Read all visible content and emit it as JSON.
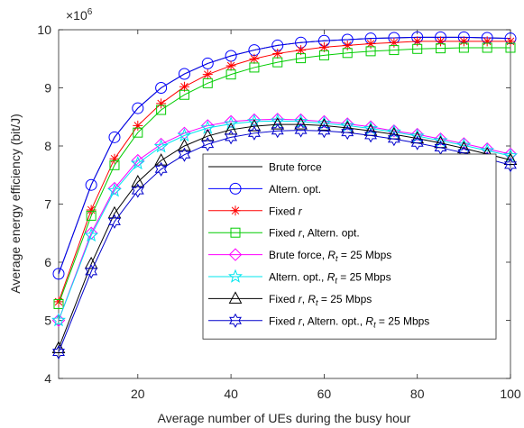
{
  "chart_data": {
    "type": "line",
    "xlabel": "Average number of UEs during the busy hour",
    "ylabel": "Average energy efficiency (bit/J)",
    "y_multiplier": "×10",
    "y_exponent": "6",
    "xlim": [
      3,
      100
    ],
    "ylim": [
      4,
      10
    ],
    "x_ticks": [
      20,
      40,
      60,
      80,
      100
    ],
    "y_ticks": [
      4,
      5,
      6,
      7,
      8,
      9,
      10
    ],
    "grid": false,
    "legend_position": "bottom-right",
    "x": [
      3,
      10,
      15,
      20,
      25,
      30,
      35,
      40,
      45,
      50,
      55,
      60,
      65,
      70,
      75,
      80,
      85,
      90,
      95,
      100
    ],
    "series": [
      {
        "legend": [
          "Brute force"
        ],
        "color": "#000000",
        "marker": "none",
        "values": [
          5.8,
          7.33,
          8.15,
          8.65,
          9.0,
          9.24,
          9.42,
          9.55,
          9.65,
          9.73,
          9.78,
          9.81,
          9.83,
          9.85,
          9.86,
          9.87,
          9.87,
          9.87,
          9.86,
          9.85
        ]
      },
      {
        "legend": [
          "Altern. opt."
        ],
        "color": "#0000ff",
        "marker": "circle",
        "values": [
          5.8,
          7.33,
          8.15,
          8.65,
          9.0,
          9.24,
          9.42,
          9.55,
          9.65,
          9.73,
          9.78,
          9.81,
          9.83,
          9.85,
          9.86,
          9.87,
          9.87,
          9.87,
          9.86,
          9.85
        ]
      },
      {
        "legend": [
          "Fixed ",
          "r"
        ],
        "color": "#ff0000",
        "marker": "asterisk",
        "values": [
          5.32,
          6.9,
          7.78,
          8.35,
          8.73,
          9.02,
          9.23,
          9.38,
          9.5,
          9.59,
          9.65,
          9.7,
          9.73,
          9.76,
          9.78,
          9.8,
          9.8,
          9.8,
          9.8,
          9.8
        ]
      },
      {
        "legend": [
          "Fixed ",
          "r",
          ", Altern. opt."
        ],
        "color": "#00cc00",
        "marker": "square",
        "values": [
          5.28,
          6.8,
          7.67,
          8.23,
          8.62,
          8.88,
          9.08,
          9.23,
          9.35,
          9.44,
          9.51,
          9.56,
          9.6,
          9.63,
          9.65,
          9.67,
          9.68,
          9.69,
          9.69,
          9.69
        ]
      },
      {
        "legend": [
          "Brute force, ",
          "R",
          "t",
          " = 25 Mbps"
        ],
        "color": "#ff00ff",
        "marker": "diamond",
        "values": [
          5.0,
          6.5,
          7.27,
          7.75,
          8.03,
          8.22,
          8.35,
          8.42,
          8.45,
          8.46,
          8.45,
          8.42,
          8.38,
          8.33,
          8.26,
          8.2,
          8.12,
          8.04,
          7.95,
          7.86
        ]
      },
      {
        "legend": [
          "Altern. opt., ",
          "R",
          "t",
          " = 25 Mbps"
        ],
        "color": "#00e5ee",
        "marker": "star",
        "values": [
          5.0,
          6.46,
          7.23,
          7.7,
          7.99,
          8.18,
          8.31,
          8.38,
          8.42,
          8.43,
          8.42,
          8.39,
          8.35,
          8.3,
          8.24,
          8.17,
          8.09,
          8.01,
          7.92,
          7.83
        ]
      },
      {
        "legend": [
          "Fixed ",
          "r",
          ", ",
          "R",
          "t",
          " = 25 Mbps"
        ],
        "color": "#000000",
        "marker": "triangle",
        "values": [
          4.52,
          5.97,
          6.84,
          7.38,
          7.75,
          8.0,
          8.17,
          8.28,
          8.34,
          8.37,
          8.37,
          8.35,
          8.31,
          8.26,
          8.2,
          8.13,
          8.05,
          7.96,
          7.86,
          7.76
        ]
      },
      {
        "legend": [
          "Fixed ",
          "r",
          ", Altern. opt., ",
          "R",
          "t",
          " = 25 Mbps"
        ],
        "color": "#0000cc",
        "marker": "hexagram",
        "values": [
          4.45,
          5.84,
          6.7,
          7.23,
          7.6,
          7.85,
          8.03,
          8.15,
          8.22,
          8.26,
          8.27,
          8.26,
          8.23,
          8.18,
          8.12,
          8.05,
          7.97,
          7.88,
          7.78,
          7.67
        ]
      }
    ]
  }
}
